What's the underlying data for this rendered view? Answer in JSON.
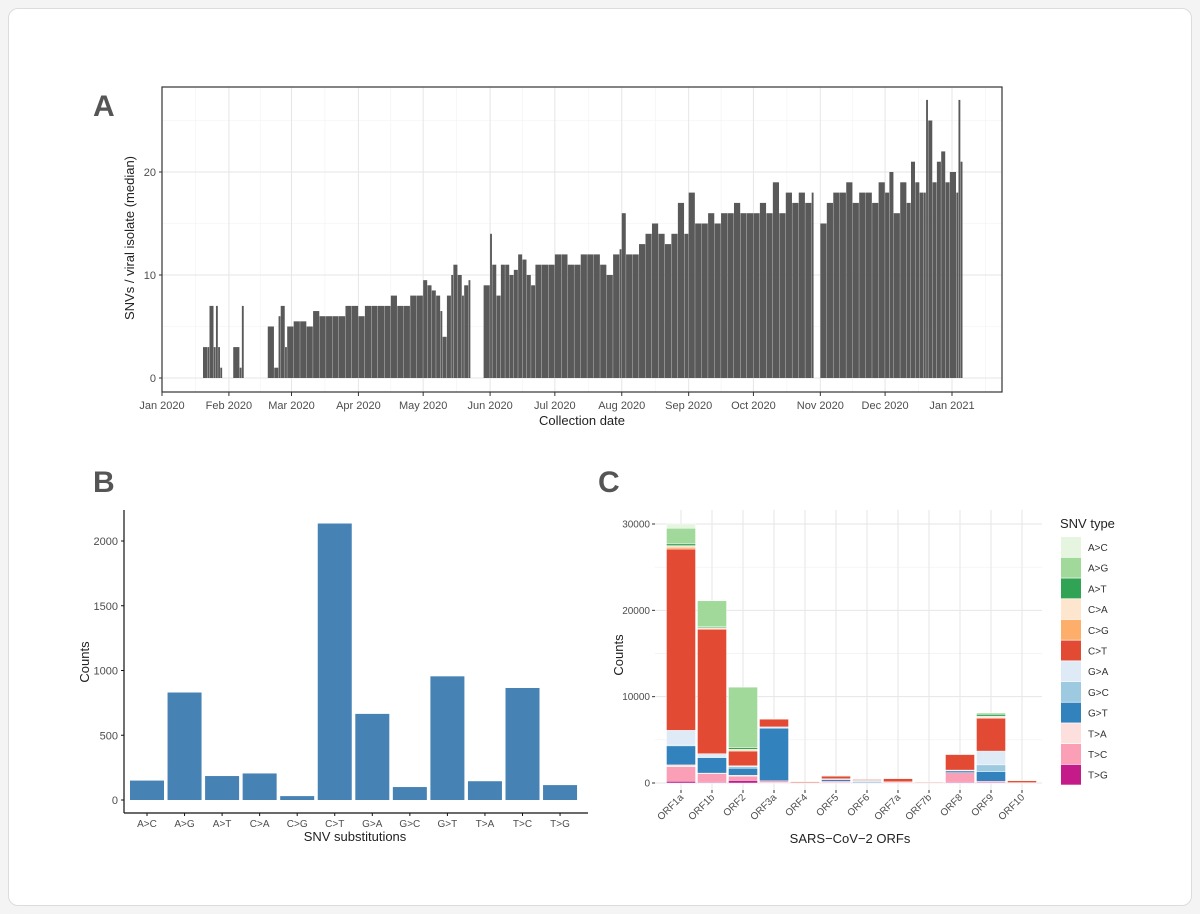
{
  "panels": {
    "a": "A",
    "b": "B",
    "c": "C"
  },
  "colors": {
    "bar_a": "#595959",
    "bar_b": "#4682b4"
  },
  "chart_data": [
    {
      "id": "A",
      "type": "bar",
      "xlabel": "Collection date",
      "ylabel": "SNVs / viral isolate (median)",
      "x_ticks": [
        "Jan 2020",
        "Feb 2020",
        "Mar 2020",
        "Apr 2020",
        "May 2020",
        "Jun 2020",
        "Jul 2020",
        "Aug 2020",
        "Sep 2020",
        "Oct 2020",
        "Nov 2020",
        "Dec 2020",
        "Jan 2021"
      ],
      "y_ticks": [
        0,
        10,
        20
      ],
      "grid": true,
      "points": [
        [
          "2020-01-20",
          3
        ],
        [
          "2020-01-22",
          3
        ],
        [
          "2020-01-23",
          7
        ],
        [
          "2020-01-25",
          3
        ],
        [
          "2020-01-26",
          7
        ],
        [
          "2020-01-27",
          3
        ],
        [
          "2020-01-28",
          1
        ],
        [
          "2020-02-03",
          3
        ],
        [
          "2020-02-06",
          1
        ],
        [
          "2020-02-07",
          7
        ],
        [
          "2020-02-19",
          5
        ],
        [
          "2020-02-22",
          1
        ],
        [
          "2020-02-24",
          6
        ],
        [
          "2020-02-25",
          7
        ],
        [
          "2020-02-27",
          3
        ],
        [
          "2020-02-28",
          5
        ],
        [
          "2020-03-02",
          5.5
        ],
        [
          "2020-03-05",
          5.5
        ],
        [
          "2020-03-08",
          5
        ],
        [
          "2020-03-11",
          6.5
        ],
        [
          "2020-03-14",
          6
        ],
        [
          "2020-03-17",
          6
        ],
        [
          "2020-03-20",
          6
        ],
        [
          "2020-03-23",
          6
        ],
        [
          "2020-03-26",
          7
        ],
        [
          "2020-03-29",
          7
        ],
        [
          "2020-04-01",
          6
        ],
        [
          "2020-04-04",
          7
        ],
        [
          "2020-04-07",
          7
        ],
        [
          "2020-04-10",
          7
        ],
        [
          "2020-04-13",
          7
        ],
        [
          "2020-04-16",
          8
        ],
        [
          "2020-04-19",
          7
        ],
        [
          "2020-04-22",
          7
        ],
        [
          "2020-04-25",
          8
        ],
        [
          "2020-04-28",
          8
        ],
        [
          "2020-05-01",
          9.5
        ],
        [
          "2020-05-03",
          9
        ],
        [
          "2020-05-05",
          8.5
        ],
        [
          "2020-05-07",
          8
        ],
        [
          "2020-05-09",
          6.5
        ],
        [
          "2020-05-10",
          4
        ],
        [
          "2020-05-12",
          8
        ],
        [
          "2020-05-14",
          10
        ],
        [
          "2020-05-15",
          11
        ],
        [
          "2020-05-17",
          10
        ],
        [
          "2020-05-19",
          8
        ],
        [
          "2020-05-20",
          9
        ],
        [
          "2020-05-22",
          9.5
        ],
        [
          "2020-05-29",
          9
        ],
        [
          "2020-06-01",
          14
        ],
        [
          "2020-06-02",
          11
        ],
        [
          "2020-06-04",
          8
        ],
        [
          "2020-06-06",
          11
        ],
        [
          "2020-06-08",
          11
        ],
        [
          "2020-06-10",
          10
        ],
        [
          "2020-06-12",
          10.5
        ],
        [
          "2020-06-14",
          12
        ],
        [
          "2020-06-16",
          11.5
        ],
        [
          "2020-06-18",
          10
        ],
        [
          "2020-06-20",
          9
        ],
        [
          "2020-06-22",
          11
        ],
        [
          "2020-06-25",
          11
        ],
        [
          "2020-06-28",
          11
        ],
        [
          "2020-07-01",
          12
        ],
        [
          "2020-07-04",
          12
        ],
        [
          "2020-07-07",
          11
        ],
        [
          "2020-07-10",
          11
        ],
        [
          "2020-07-13",
          12
        ],
        [
          "2020-07-16",
          12
        ],
        [
          "2020-07-19",
          12
        ],
        [
          "2020-07-22",
          11
        ],
        [
          "2020-07-25",
          10
        ],
        [
          "2020-07-28",
          12
        ],
        [
          "2020-07-31",
          12.5
        ],
        [
          "2020-08-01",
          16
        ],
        [
          "2020-08-03",
          12
        ],
        [
          "2020-08-06",
          12
        ],
        [
          "2020-08-09",
          13
        ],
        [
          "2020-08-12",
          14
        ],
        [
          "2020-08-15",
          15
        ],
        [
          "2020-08-18",
          14
        ],
        [
          "2020-08-21",
          13
        ],
        [
          "2020-08-24",
          14
        ],
        [
          "2020-08-27",
          17
        ],
        [
          "2020-08-30",
          14
        ],
        [
          "2020-09-01",
          18
        ],
        [
          "2020-09-04",
          15
        ],
        [
          "2020-09-07",
          15
        ],
        [
          "2020-09-10",
          16
        ],
        [
          "2020-09-13",
          15
        ],
        [
          "2020-09-16",
          16
        ],
        [
          "2020-09-19",
          16
        ],
        [
          "2020-09-22",
          17
        ],
        [
          "2020-09-25",
          16
        ],
        [
          "2020-09-28",
          16
        ],
        [
          "2020-10-01",
          16
        ],
        [
          "2020-10-04",
          17
        ],
        [
          "2020-10-07",
          16
        ],
        [
          "2020-10-10",
          19
        ],
        [
          "2020-10-13",
          16
        ],
        [
          "2020-10-16",
          18
        ],
        [
          "2020-10-19",
          17
        ],
        [
          "2020-10-22",
          18
        ],
        [
          "2020-10-25",
          17
        ],
        [
          "2020-10-28",
          18
        ],
        [
          "2020-11-01",
          15
        ],
        [
          "2020-11-04",
          17
        ],
        [
          "2020-11-07",
          18
        ],
        [
          "2020-11-10",
          18
        ],
        [
          "2020-11-13",
          19
        ],
        [
          "2020-11-16",
          17
        ],
        [
          "2020-11-19",
          18
        ],
        [
          "2020-11-22",
          18
        ],
        [
          "2020-11-25",
          17
        ],
        [
          "2020-11-28",
          19
        ],
        [
          "2020-12-01",
          18
        ],
        [
          "2020-12-03",
          20
        ],
        [
          "2020-12-05",
          16
        ],
        [
          "2020-12-08",
          19
        ],
        [
          "2020-12-11",
          17
        ],
        [
          "2020-12-13",
          21
        ],
        [
          "2020-12-15",
          19
        ],
        [
          "2020-12-17",
          18
        ],
        [
          "2020-12-19",
          18
        ],
        [
          "2020-12-20",
          27
        ],
        [
          "2020-12-21",
          25
        ],
        [
          "2020-12-23",
          19
        ],
        [
          "2020-12-25",
          21
        ],
        [
          "2020-12-27",
          22
        ],
        [
          "2020-12-29",
          19
        ],
        [
          "2020-12-31",
          20
        ],
        [
          "2021-01-03",
          18
        ],
        [
          "2021-01-04",
          27
        ],
        [
          "2021-01-05",
          21
        ]
      ]
    },
    {
      "id": "B",
      "type": "bar",
      "xlabel": "SNV substitutions",
      "ylabel": "Counts",
      "ylim": [
        0,
        2250
      ],
      "y_ticks": [
        0,
        500,
        1000,
        1500,
        2000
      ],
      "categories": [
        "A>C",
        "A>G",
        "A>T",
        "C>A",
        "C>G",
        "C>T",
        "G>A",
        "G>C",
        "G>T",
        "T>A",
        "T>C",
        "T>G"
      ],
      "values": [
        150,
        830,
        185,
        205,
        30,
        2135,
        665,
        100,
        955,
        145,
        865,
        115
      ]
    },
    {
      "id": "C",
      "type": "bar",
      "stacked": true,
      "xlabel": "SARS−CoV−2 ORFs",
      "ylabel": "Counts",
      "y_ticks": [
        0,
        10000,
        20000,
        30000
      ],
      "legend_title": "SNV type",
      "legend_position": "right",
      "categories": [
        "ORF1a",
        "ORF1b",
        "ORF2",
        "ORF3a",
        "ORF4",
        "ORF5",
        "ORF6",
        "ORF7a",
        "ORF7b",
        "ORF8",
        "ORF9",
        "ORF10"
      ],
      "series": [
        {
          "name": "A>C",
          "color": "#e5f5e0",
          "values": [
            500,
            0,
            0,
            0,
            0,
            0,
            0,
            0,
            0,
            0,
            0,
            0
          ]
        },
        {
          "name": "A>G",
          "color": "#a1d99b",
          "values": [
            1800,
            3000,
            7000,
            50,
            0,
            50,
            0,
            0,
            0,
            0,
            150,
            0
          ]
        },
        {
          "name": "A>T",
          "color": "#31a354",
          "values": [
            200,
            100,
            200,
            0,
            0,
            0,
            0,
            0,
            0,
            0,
            200,
            0
          ]
        },
        {
          "name": "C>A",
          "color": "#fee6ce",
          "values": [
            200,
            100,
            100,
            0,
            0,
            0,
            0,
            0,
            0,
            50,
            200,
            0
          ]
        },
        {
          "name": "C>G",
          "color": "#fdae6b",
          "values": [
            200,
            100,
            100,
            0,
            0,
            50,
            0,
            0,
            0,
            0,
            50,
            0
          ]
        },
        {
          "name": "C>T",
          "color": "#e34a33",
          "values": [
            21000,
            14400,
            1700,
            900,
            100,
            300,
            100,
            350,
            80,
            1800,
            3800,
            200
          ]
        },
        {
          "name": "G>A",
          "color": "#deebf7",
          "values": [
            1700,
            400,
            100,
            150,
            0,
            100,
            200,
            0,
            0,
            100,
            1600,
            0
          ]
        },
        {
          "name": "G>C",
          "color": "#9ecae1",
          "values": [
            100,
            50,
            200,
            0,
            0,
            0,
            0,
            0,
            0,
            0,
            800,
            0
          ]
        },
        {
          "name": "G>T",
          "color": "#3182bd",
          "values": [
            2200,
            1800,
            800,
            6100,
            0,
            200,
            100,
            50,
            0,
            200,
            1100,
            0
          ]
        },
        {
          "name": "T>A",
          "color": "#fde0dd",
          "values": [
            200,
            50,
            100,
            0,
            0,
            0,
            0,
            0,
            0,
            0,
            0,
            0
          ]
        },
        {
          "name": "T>C",
          "color": "#fa9fb5",
          "values": [
            1700,
            1000,
            500,
            200,
            50,
            150,
            0,
            100,
            20,
            1100,
            100,
            50
          ]
        },
        {
          "name": "T>G",
          "color": "#c51b8a",
          "values": [
            200,
            100,
            300,
            50,
            0,
            50,
            0,
            0,
            0,
            100,
            100,
            0
          ]
        }
      ]
    }
  ]
}
